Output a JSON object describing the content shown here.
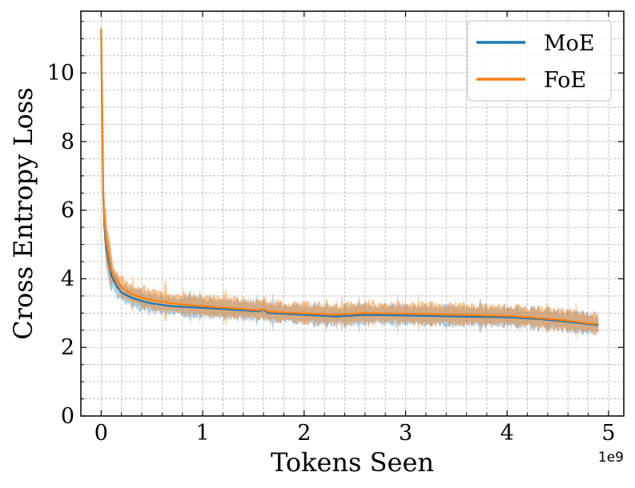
{
  "chart_data": {
    "type": "line",
    "xlabel": "Tokens Seen",
    "ylabel": "Cross Entropy Loss",
    "x_offset_label": "1e9",
    "xlim": [
      -0.2,
      5.15
    ],
    "ylim": [
      0,
      11.8
    ],
    "x_ticks": [
      0,
      1,
      2,
      3,
      4,
      5
    ],
    "x_tick_labels": [
      "0",
      "1",
      "2",
      "3",
      "4",
      "5"
    ],
    "y_ticks": [
      0,
      2,
      4,
      6,
      8,
      10
    ],
    "y_tick_labels": [
      "0",
      "2",
      "4",
      "6",
      "8",
      "10"
    ],
    "grid": true,
    "legend_position": "top-right",
    "series": [
      {
        "name": "MoE",
        "color": "#1f77b4",
        "x": [
          0.0,
          0.01,
          0.02,
          0.03,
          0.05,
          0.08,
          0.1,
          0.15,
          0.2,
          0.3,
          0.4,
          0.5,
          0.7,
          1.0,
          1.3,
          1.55,
          1.6,
          1.65,
          1.8,
          2.0,
          2.3,
          2.45,
          2.6,
          3.0,
          3.5,
          4.0,
          4.3,
          4.6,
          4.8,
          4.9
        ],
        "y": [
          11.2,
          8.8,
          6.5,
          5.6,
          4.9,
          4.4,
          4.1,
          3.8,
          3.6,
          3.45,
          3.35,
          3.28,
          3.2,
          3.15,
          3.1,
          3.05,
          3.1,
          3.0,
          2.98,
          2.95,
          2.9,
          2.92,
          2.95,
          2.93,
          2.9,
          2.88,
          2.83,
          2.75,
          2.68,
          2.65
        ]
      },
      {
        "name": "FoE",
        "color": "#ff7f0e",
        "x": [
          0.0,
          0.01,
          0.02,
          0.03,
          0.05,
          0.08,
          0.1,
          0.15,
          0.2,
          0.3,
          0.4,
          0.5,
          0.7,
          1.0,
          1.3,
          1.55,
          1.6,
          1.65,
          1.8,
          2.0,
          2.3,
          2.45,
          2.6,
          3.0,
          3.5,
          4.0,
          4.3,
          4.6,
          4.8,
          4.9
        ],
        "y": [
          11.3,
          9.0,
          6.7,
          5.8,
          5.1,
          4.6,
          4.25,
          3.95,
          3.75,
          3.55,
          3.45,
          3.38,
          3.28,
          3.2,
          3.14,
          3.08,
          3.12,
          3.04,
          3.02,
          2.99,
          2.95,
          2.97,
          3.0,
          2.98,
          2.95,
          2.92,
          2.86,
          2.78,
          2.7,
          2.68
        ]
      }
    ]
  }
}
